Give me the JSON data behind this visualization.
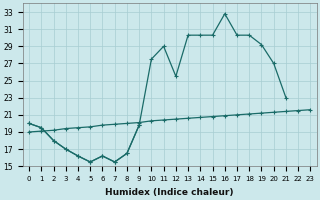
{
  "xlabel": "Humidex (Indice chaleur)",
  "bg_color": "#cce8eb",
  "grid_color": "#a8cdd2",
  "line_color": "#1a6b68",
  "xlim": [
    -0.5,
    23.5
  ],
  "ylim": [
    15,
    34
  ],
  "yticks": [
    15,
    17,
    19,
    21,
    23,
    25,
    27,
    29,
    31,
    33
  ],
  "curve_zigzag": {
    "x": [
      0,
      1,
      2,
      3,
      4,
      5,
      6,
      7,
      8,
      9
    ],
    "y": [
      20.0,
      19.5,
      18.0,
      17.0,
      16.2,
      15.5,
      16.2,
      15.5,
      16.5,
      19.8
    ]
  },
  "curve_main": {
    "x": [
      0,
      1,
      2,
      3,
      4,
      5,
      6,
      7,
      8,
      9,
      10,
      11,
      12,
      13,
      14,
      15,
      16,
      17,
      18,
      19,
      20,
      21
    ],
    "y": [
      20.0,
      19.5,
      18.0,
      17.0,
      16.2,
      15.5,
      16.2,
      15.5,
      16.5,
      19.8,
      27.5,
      29.0,
      25.5,
      30.3,
      30.3,
      30.3,
      32.8,
      30.3,
      30.3,
      29.2,
      27.0,
      23.0
    ]
  },
  "curve_flat": {
    "x": [
      0,
      1,
      2,
      3,
      4,
      5,
      6,
      7,
      8,
      9,
      10,
      11,
      12,
      13,
      14,
      15,
      16,
      17,
      18,
      19,
      20,
      21,
      22,
      23
    ],
    "y": [
      19.0,
      19.1,
      19.2,
      19.4,
      19.5,
      19.6,
      19.8,
      19.9,
      20.0,
      20.1,
      20.3,
      20.4,
      20.5,
      20.6,
      20.7,
      20.8,
      20.9,
      21.0,
      21.1,
      21.2,
      21.3,
      21.4,
      21.5,
      21.6
    ]
  }
}
